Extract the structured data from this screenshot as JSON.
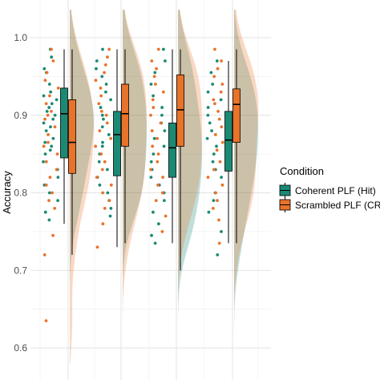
{
  "chart_data": {
    "type": "raincloud",
    "title": "",
    "xlabel": "",
    "ylabel": "Accuracy",
    "ylim": [
      0.575,
      1.04
    ],
    "yticks": [
      0.6,
      0.7,
      0.8,
      0.9,
      1.0
    ],
    "ytick_labels": [
      "0.6",
      "0.7",
      "0.8",
      "0.9",
      "1.0"
    ],
    "grid": true,
    "legend": {
      "title": "Condition",
      "placement": "right",
      "entries": [
        "Coherent PLF (Hit)",
        "Scrambled PLF (CR)"
      ]
    },
    "colors": {
      "Coherent PLF (Hit)": "#1b8a75",
      "Scrambled PLF (CR)": "#e8732a"
    },
    "groups": [
      {
        "boxes": {
          "Coherent PLF (Hit)": {
            "min": 0.76,
            "q1": 0.845,
            "median": 0.902,
            "q3": 0.935,
            "max": 0.985
          },
          "Scrambled PLF (CR)": {
            "min": 0.72,
            "q1": 0.825,
            "median": 0.865,
            "q3": 0.92,
            "max": 0.985
          }
        },
        "density_mode": {
          "Coherent PLF (Hit)": 0.885,
          "Scrambled PLF (CR)": 0.87
        },
        "points": {
          "Coherent PLF (Hit)": [
            0.985,
            0.975,
            0.96,
            0.955,
            0.94,
            0.93,
            0.925,
            0.92,
            0.915,
            0.91,
            0.905,
            0.9,
            0.895,
            0.89,
            0.885,
            0.88,
            0.87,
            0.865,
            0.86,
            0.855,
            0.85,
            0.84,
            0.83,
            0.82,
            0.81,
            0.8,
            0.79,
            0.775,
            0.765
          ],
          "Scrambled PLF (CR)": [
            0.985,
            0.97,
            0.955,
            0.945,
            0.935,
            0.925,
            0.915,
            0.905,
            0.9,
            0.895,
            0.885,
            0.875,
            0.865,
            0.86,
            0.85,
            0.84,
            0.83,
            0.82,
            0.81,
            0.8,
            0.79,
            0.78,
            0.745,
            0.72,
            0.635
          ]
        }
      },
      {
        "boxes": {
          "Coherent PLF (Hit)": {
            "min": 0.73,
            "q1": 0.822,
            "median": 0.875,
            "q3": 0.905,
            "max": 0.985
          },
          "Scrambled PLF (CR)": {
            "min": 0.735,
            "q1": 0.86,
            "median": 0.902,
            "q3": 0.94,
            "max": 0.985
          }
        },
        "density_mode": {
          "Coherent PLF (Hit)": 0.885,
          "Scrambled PLF (CR)": 0.905
        },
        "points": {
          "Coherent PLF (Hit)": [
            0.985,
            0.97,
            0.96,
            0.95,
            0.94,
            0.93,
            0.92,
            0.91,
            0.9,
            0.895,
            0.885,
            0.875,
            0.865,
            0.86,
            0.85,
            0.84,
            0.83,
            0.82,
            0.81,
            0.8,
            0.79,
            0.78,
            0.77
          ],
          "Scrambled PLF (CR)": [
            0.985,
            0.975,
            0.965,
            0.955,
            0.945,
            0.935,
            0.925,
            0.915,
            0.905,
            0.9,
            0.89,
            0.88,
            0.87,
            0.86,
            0.85,
            0.84,
            0.83,
            0.82,
            0.81,
            0.8,
            0.79,
            0.78,
            0.76,
            0.73
          ]
        }
      },
      {
        "boxes": {
          "Coherent PLF (Hit)": {
            "min": 0.735,
            "q1": 0.82,
            "median": 0.858,
            "q3": 0.89,
            "max": 0.985
          },
          "Scrambled PLF (CR)": {
            "min": 0.7,
            "q1": 0.86,
            "median": 0.907,
            "q3": 0.952,
            "max": 0.985
          }
        },
        "density_mode": {
          "Coherent PLF (Hit)": 0.86,
          "Scrambled PLF (CR)": 0.92
        },
        "points": {
          "Coherent PLF (Hit)": [
            0.985,
            0.97,
            0.955,
            0.94,
            0.925,
            0.91,
            0.9,
            0.89,
            0.88,
            0.87,
            0.86,
            0.85,
            0.84,
            0.83,
            0.82,
            0.81,
            0.8,
            0.79,
            0.775,
            0.76,
            0.745,
            0.735
          ],
          "Scrambled PLF (CR)": [
            0.985,
            0.97,
            0.96,
            0.95,
            0.94,
            0.93,
            0.92,
            0.91,
            0.9,
            0.89,
            0.88,
            0.87,
            0.86,
            0.85,
            0.84,
            0.83,
            0.82,
            0.81,
            0.8,
            0.79,
            0.77,
            0.75
          ]
        }
      },
      {
        "boxes": {
          "Coherent PLF (Hit)": {
            "min": 0.735,
            "q1": 0.828,
            "median": 0.868,
            "q3": 0.905,
            "max": 0.97
          },
          "Scrambled PLF (CR)": {
            "min": 0.735,
            "q1": 0.865,
            "median": 0.914,
            "q3": 0.934,
            "max": 0.985
          }
        },
        "density_mode": {
          "Coherent PLF (Hit)": 0.875,
          "Scrambled PLF (CR)": 0.91
        },
        "points": {
          "Coherent PLF (Hit)": [
            0.97,
            0.955,
            0.94,
            0.93,
            0.92,
            0.91,
            0.9,
            0.89,
            0.88,
            0.87,
            0.86,
            0.85,
            0.84,
            0.83,
            0.82,
            0.8,
            0.79,
            0.775,
            0.75,
            0.72
          ],
          "Scrambled PLF (CR)": [
            0.985,
            0.97,
            0.96,
            0.95,
            0.94,
            0.93,
            0.92,
            0.915,
            0.905,
            0.895,
            0.885,
            0.875,
            0.865,
            0.855,
            0.84,
            0.83,
            0.82,
            0.81,
            0.8,
            0.79,
            0.78,
            0.765,
            0.735
          ]
        }
      }
    ]
  }
}
